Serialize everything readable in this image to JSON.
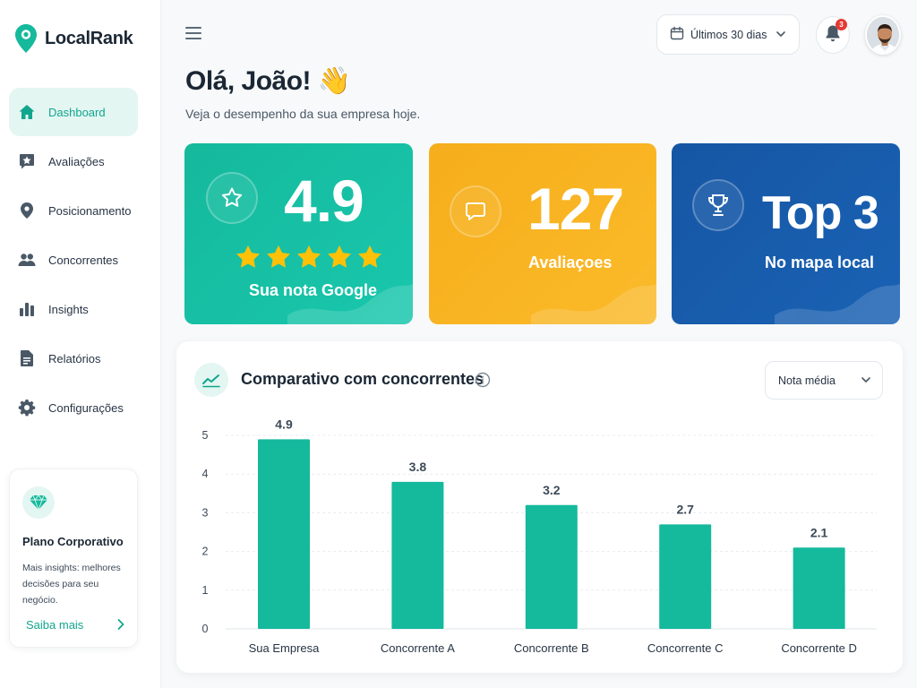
{
  "app": {
    "name": "LocalRank"
  },
  "sidebar": {
    "items": [
      {
        "label": "Dashboard",
        "icon": "home-icon",
        "active": true
      },
      {
        "label": "Avaliações",
        "icon": "review-star-icon",
        "active": false
      },
      {
        "label": "Posicionamento",
        "icon": "map-pin-icon",
        "active": false
      },
      {
        "label": "Concorrentes",
        "icon": "users-icon",
        "active": false
      },
      {
        "label": "Insights",
        "icon": "bar-chart-icon",
        "active": false
      },
      {
        "label": "Relatórios",
        "icon": "document-icon",
        "active": false
      },
      {
        "label": "Configurações",
        "icon": "gear-icon",
        "active": false
      }
    ],
    "plan": {
      "title": "Plano Corporativo",
      "description": "Mais insights: melhores decisões para seu negócio.",
      "link": "Saiba mais"
    }
  },
  "header": {
    "date_range": "Últimos 30 dias",
    "notifications": "3"
  },
  "greeting": {
    "title": "Olá, João! 👋",
    "subtitle": "Veja o desempenho da sua empresa hoje."
  },
  "stats": {
    "rating": {
      "value": "4.9",
      "label": "Sua nota Google",
      "stars": 5
    },
    "reviews": {
      "value": "127",
      "label": "Avaliaçoes"
    },
    "rank": {
      "value": "Top 3",
      "label": "No mapa local"
    }
  },
  "colors": {
    "accent": "#15b99c",
    "orange": "#f6ad1b",
    "blue": "#1656a4",
    "notification": "#e53935"
  },
  "comparison": {
    "title": "Comparativo com concorrentes",
    "metric": "Nota média"
  },
  "chart_data": {
    "type": "bar",
    "title": "Comparativo com concorrentes",
    "categories": [
      "Sua Empresa",
      "Concorrente A",
      "Concorrente B",
      "Concorrente C",
      "Concorrente D"
    ],
    "values": [
      4.9,
      3.8,
      3.2,
      2.7,
      2.1
    ],
    "value_labels": [
      "4.9",
      "3.8",
      "3.2",
      "2.7",
      "2.1"
    ],
    "yticks": [
      "0",
      "1",
      "2",
      "3",
      "4",
      "5"
    ],
    "ylim": [
      0,
      5
    ],
    "grid": true,
    "highlight_category": "Sua Empresa"
  }
}
